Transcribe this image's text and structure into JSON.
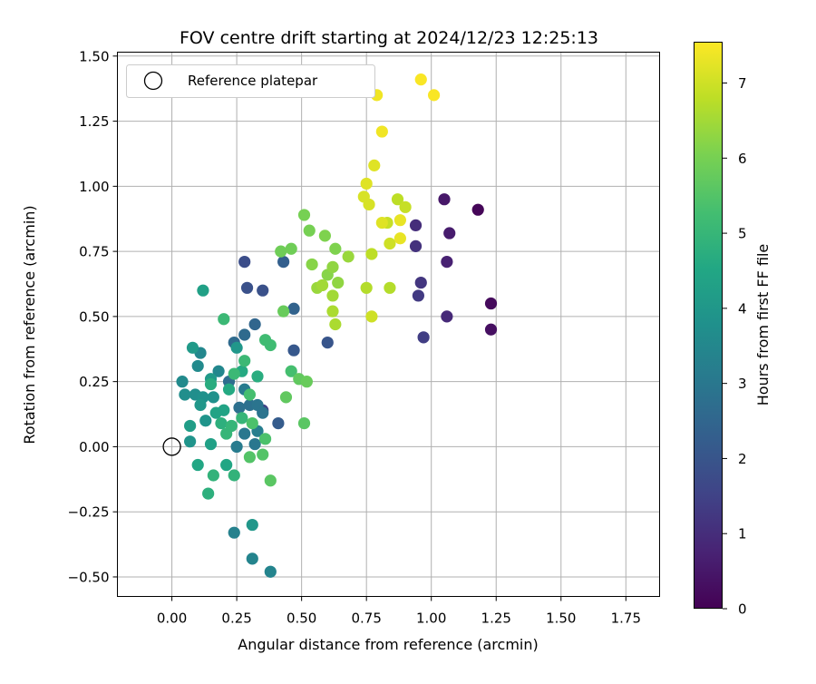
{
  "chart_data": {
    "type": "scatter",
    "title": "FOV centre drift starting at 2024/12/23 12:25:13",
    "xlabel": "Angular distance from reference (arcmin)",
    "ylabel": "Rotation from reference (arcmin)",
    "xlim": [
      -0.21,
      1.88
    ],
    "ylim": [
      -0.575,
      1.515
    ],
    "xticks": [
      0.0,
      0.25,
      0.5,
      0.75,
      1.0,
      1.25,
      1.5,
      1.75
    ],
    "xtick_labels": [
      "0.00",
      "0.25",
      "0.50",
      "0.75",
      "1.00",
      "1.25",
      "1.50",
      "1.75"
    ],
    "yticks": [
      -0.5,
      -0.25,
      0.0,
      0.25,
      0.5,
      0.75,
      1.0,
      1.25,
      1.5
    ],
    "ytick_labels": [
      "−0.50",
      "−0.25",
      "0.00",
      "0.25",
      "0.50",
      "0.75",
      "1.00",
      "1.25",
      "1.50"
    ],
    "grid": true,
    "legend": {
      "position": "top-left",
      "entries": [
        "Reference platepar"
      ]
    },
    "reference": {
      "x": 0.0,
      "y": 0.0,
      "label": "Reference platepar"
    },
    "colorbar": {
      "label": "Hours from first FF file",
      "colormap": "viridis",
      "min": 0,
      "max": 7.55,
      "ticks": [
        0,
        1,
        2,
        3,
        4,
        5,
        6,
        7
      ],
      "tick_labels": [
        "0",
        "1",
        "2",
        "3",
        "4",
        "5",
        "6",
        "7"
      ]
    },
    "points": [
      {
        "x": 1.18,
        "y": 0.91,
        "h": 0.1
      },
      {
        "x": 1.23,
        "y": 0.55,
        "h": 0.2
      },
      {
        "x": 1.23,
        "y": 0.45,
        "h": 0.3
      },
      {
        "x": 1.05,
        "y": 0.95,
        "h": 0.5
      },
      {
        "x": 1.07,
        "y": 0.82,
        "h": 0.6
      },
      {
        "x": 1.06,
        "y": 0.71,
        "h": 0.7
      },
      {
        "x": 1.06,
        "y": 0.5,
        "h": 0.9
      },
      {
        "x": 0.94,
        "y": 0.85,
        "h": 1.0
      },
      {
        "x": 0.94,
        "y": 0.77,
        "h": 1.1
      },
      {
        "x": 0.96,
        "y": 0.63,
        "h": 1.2
      },
      {
        "x": 0.95,
        "y": 0.58,
        "h": 1.3
      },
      {
        "x": 0.97,
        "y": 0.42,
        "h": 1.4
      },
      {
        "x": 0.35,
        "y": 0.14,
        "h": 1.5
      },
      {
        "x": 0.28,
        "y": 0.71,
        "h": 1.8
      },
      {
        "x": 0.29,
        "y": 0.61,
        "h": 1.9
      },
      {
        "x": 0.35,
        "y": 0.6,
        "h": 1.9
      },
      {
        "x": 0.6,
        "y": 0.4,
        "h": 2.0
      },
      {
        "x": 0.47,
        "y": 0.37,
        "h": 2.1
      },
      {
        "x": 0.41,
        "y": 0.09,
        "h": 2.2
      },
      {
        "x": 0.43,
        "y": 0.71,
        "h": 2.3
      },
      {
        "x": 0.47,
        "y": 0.53,
        "h": 2.4
      },
      {
        "x": 0.32,
        "y": 0.47,
        "h": 2.5
      },
      {
        "x": 0.24,
        "y": 0.4,
        "h": 2.6
      },
      {
        "x": 0.28,
        "y": 0.43,
        "h": 2.6
      },
      {
        "x": 0.22,
        "y": 0.25,
        "h": 2.7
      },
      {
        "x": 0.26,
        "y": 0.15,
        "h": 2.8
      },
      {
        "x": 0.3,
        "y": 0.16,
        "h": 2.8
      },
      {
        "x": 0.33,
        "y": 0.16,
        "h": 2.9
      },
      {
        "x": 0.35,
        "y": 0.13,
        "h": 2.9
      },
      {
        "x": 0.28,
        "y": 0.05,
        "h": 3.0
      },
      {
        "x": 0.32,
        "y": 0.01,
        "h": 3.0
      },
      {
        "x": 0.25,
        "y": 0.0,
        "h": 3.1
      },
      {
        "x": 0.28,
        "y": 0.22,
        "h": 3.1
      },
      {
        "x": 0.33,
        "y": 0.06,
        "h": 3.2
      },
      {
        "x": 0.24,
        "y": -0.33,
        "h": 3.3
      },
      {
        "x": 0.31,
        "y": -0.43,
        "h": 3.4
      },
      {
        "x": 0.38,
        "y": -0.48,
        "h": 3.4
      },
      {
        "x": 0.18,
        "y": 0.29,
        "h": 3.5
      },
      {
        "x": 0.11,
        "y": 0.36,
        "h": 3.5
      },
      {
        "x": 0.1,
        "y": 0.31,
        "h": 3.6
      },
      {
        "x": 0.04,
        "y": 0.25,
        "h": 3.6
      },
      {
        "x": 0.05,
        "y": 0.2,
        "h": 3.7
      },
      {
        "x": 0.09,
        "y": 0.2,
        "h": 3.7
      },
      {
        "x": 0.12,
        "y": 0.19,
        "h": 3.8
      },
      {
        "x": 0.16,
        "y": 0.19,
        "h": 3.8
      },
      {
        "x": 0.07,
        "y": 0.02,
        "h": 3.9
      },
      {
        "x": 0.13,
        "y": 0.1,
        "h": 3.9
      },
      {
        "x": 0.11,
        "y": 0.16,
        "h": 4.0
      },
      {
        "x": 0.31,
        "y": -0.3,
        "h": 4.0
      },
      {
        "x": 0.25,
        "y": 0.38,
        "h": 4.0
      },
      {
        "x": 0.08,
        "y": 0.38,
        "h": 4.1
      },
      {
        "x": 0.15,
        "y": 0.26,
        "h": 4.1
      },
      {
        "x": 0.07,
        "y": 0.08,
        "h": 4.2
      },
      {
        "x": 0.12,
        "y": 0.6,
        "h": 4.3
      },
      {
        "x": 0.15,
        "y": 0.01,
        "h": 4.3
      },
      {
        "x": 0.2,
        "y": 0.14,
        "h": 4.4
      },
      {
        "x": 0.17,
        "y": 0.13,
        "h": 4.4
      },
      {
        "x": 0.1,
        "y": -0.07,
        "h": 4.5
      },
      {
        "x": 0.21,
        "y": -0.07,
        "h": 4.5
      },
      {
        "x": 0.22,
        "y": 0.22,
        "h": 4.6
      },
      {
        "x": 0.27,
        "y": 0.29,
        "h": 4.6
      },
      {
        "x": 0.33,
        "y": 0.27,
        "h": 4.7
      },
      {
        "x": 0.15,
        "y": 0.24,
        "h": 4.7
      },
      {
        "x": 0.19,
        "y": 0.09,
        "h": 4.8
      },
      {
        "x": 0.14,
        "y": -0.18,
        "h": 4.8
      },
      {
        "x": 0.16,
        "y": -0.11,
        "h": 4.9
      },
      {
        "x": 0.24,
        "y": -0.11,
        "h": 4.9
      },
      {
        "x": 0.21,
        "y": 0.05,
        "h": 5.0
      },
      {
        "x": 0.23,
        "y": 0.08,
        "h": 5.0
      },
      {
        "x": 0.27,
        "y": 0.11,
        "h": 5.0
      },
      {
        "x": 0.24,
        "y": 0.28,
        "h": 5.1
      },
      {
        "x": 0.28,
        "y": 0.33,
        "h": 5.1
      },
      {
        "x": 0.2,
        "y": 0.49,
        "h": 5.1
      },
      {
        "x": 0.36,
        "y": 0.41,
        "h": 5.2
      },
      {
        "x": 0.38,
        "y": 0.39,
        "h": 5.2
      },
      {
        "x": 0.46,
        "y": 0.29,
        "h": 5.3
      },
      {
        "x": 0.3,
        "y": 0.2,
        "h": 5.3
      },
      {
        "x": 0.31,
        "y": 0.09,
        "h": 5.4
      },
      {
        "x": 0.36,
        "y": 0.03,
        "h": 5.4
      },
      {
        "x": 0.35,
        "y": -0.03,
        "h": 5.5
      },
      {
        "x": 0.3,
        "y": -0.04,
        "h": 5.5
      },
      {
        "x": 0.38,
        "y": -0.13,
        "h": 5.6
      },
      {
        "x": 0.51,
        "y": 0.09,
        "h": 5.6
      },
      {
        "x": 0.44,
        "y": 0.19,
        "h": 5.7
      },
      {
        "x": 0.49,
        "y": 0.26,
        "h": 5.7
      },
      {
        "x": 0.52,
        "y": 0.25,
        "h": 5.8
      },
      {
        "x": 0.43,
        "y": 0.52,
        "h": 5.8
      },
      {
        "x": 0.42,
        "y": 0.75,
        "h": 5.9
      },
      {
        "x": 0.46,
        "y": 0.76,
        "h": 5.9
      },
      {
        "x": 0.51,
        "y": 0.89,
        "h": 6.0
      },
      {
        "x": 0.53,
        "y": 0.83,
        "h": 6.0
      },
      {
        "x": 0.59,
        "y": 0.81,
        "h": 6.1
      },
      {
        "x": 0.63,
        "y": 0.76,
        "h": 6.1
      },
      {
        "x": 0.54,
        "y": 0.7,
        "h": 6.2
      },
      {
        "x": 0.6,
        "y": 0.66,
        "h": 6.2
      },
      {
        "x": 0.62,
        "y": 0.69,
        "h": 6.3
      },
      {
        "x": 0.64,
        "y": 0.63,
        "h": 6.3
      },
      {
        "x": 0.68,
        "y": 0.73,
        "h": 6.4
      },
      {
        "x": 0.56,
        "y": 0.61,
        "h": 6.4
      },
      {
        "x": 0.58,
        "y": 0.62,
        "h": 6.5
      },
      {
        "x": 0.62,
        "y": 0.58,
        "h": 6.5
      },
      {
        "x": 0.62,
        "y": 0.52,
        "h": 6.6
      },
      {
        "x": 0.63,
        "y": 0.47,
        "h": 6.6
      },
      {
        "x": 0.75,
        "y": 0.61,
        "h": 6.7
      },
      {
        "x": 0.84,
        "y": 0.61,
        "h": 6.7
      },
      {
        "x": 0.77,
        "y": 0.74,
        "h": 6.8
      },
      {
        "x": 0.87,
        "y": 0.95,
        "h": 6.8
      },
      {
        "x": 0.9,
        "y": 0.92,
        "h": 6.9
      },
      {
        "x": 0.83,
        "y": 0.86,
        "h": 6.9
      },
      {
        "x": 0.84,
        "y": 0.78,
        "h": 7.0
      },
      {
        "x": 0.77,
        "y": 0.5,
        "h": 7.0
      },
      {
        "x": 0.74,
        "y": 0.96,
        "h": 7.1
      },
      {
        "x": 0.76,
        "y": 0.93,
        "h": 7.1
      },
      {
        "x": 0.75,
        "y": 1.01,
        "h": 7.2
      },
      {
        "x": 0.78,
        "y": 1.08,
        "h": 7.2
      },
      {
        "x": 0.81,
        "y": 0.86,
        "h": 7.2
      },
      {
        "x": 0.88,
        "y": 0.87,
        "h": 7.3
      },
      {
        "x": 0.88,
        "y": 0.8,
        "h": 7.3
      },
      {
        "x": 0.81,
        "y": 1.21,
        "h": 7.4
      },
      {
        "x": 0.79,
        "y": 1.35,
        "h": 7.4
      },
      {
        "x": 0.96,
        "y": 1.41,
        "h": 7.5
      },
      {
        "x": 1.01,
        "y": 1.35,
        "h": 7.5
      }
    ]
  }
}
